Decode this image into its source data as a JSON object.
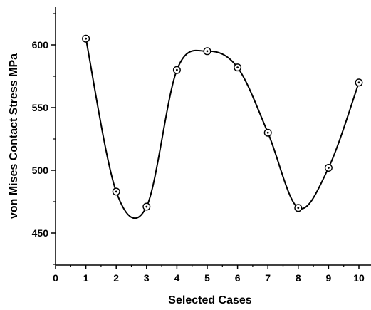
{
  "chart_data": {
    "type": "scatter",
    "title": "",
    "xlabel": "Selected Cases",
    "ylabel": "von Mises Contact Stress MPa",
    "xlim": [
      0,
      10.5
    ],
    "ylim": [
      425,
      630
    ],
    "x_ticks": [
      0,
      1,
      2,
      3,
      4,
      5,
      6,
      7,
      8,
      9,
      10
    ],
    "y_ticks": [
      450,
      500,
      550,
      600
    ],
    "grid": false,
    "legend": "none",
    "series": [
      {
        "x": [
          1,
          2,
          3,
          4,
          5,
          6,
          7,
          8,
          9,
          10
        ],
        "y": [
          605,
          483,
          471,
          580,
          595,
          582,
          530,
          470,
          502,
          570
        ],
        "marker": "circle-dot",
        "smooth_line": true
      }
    ]
  }
}
